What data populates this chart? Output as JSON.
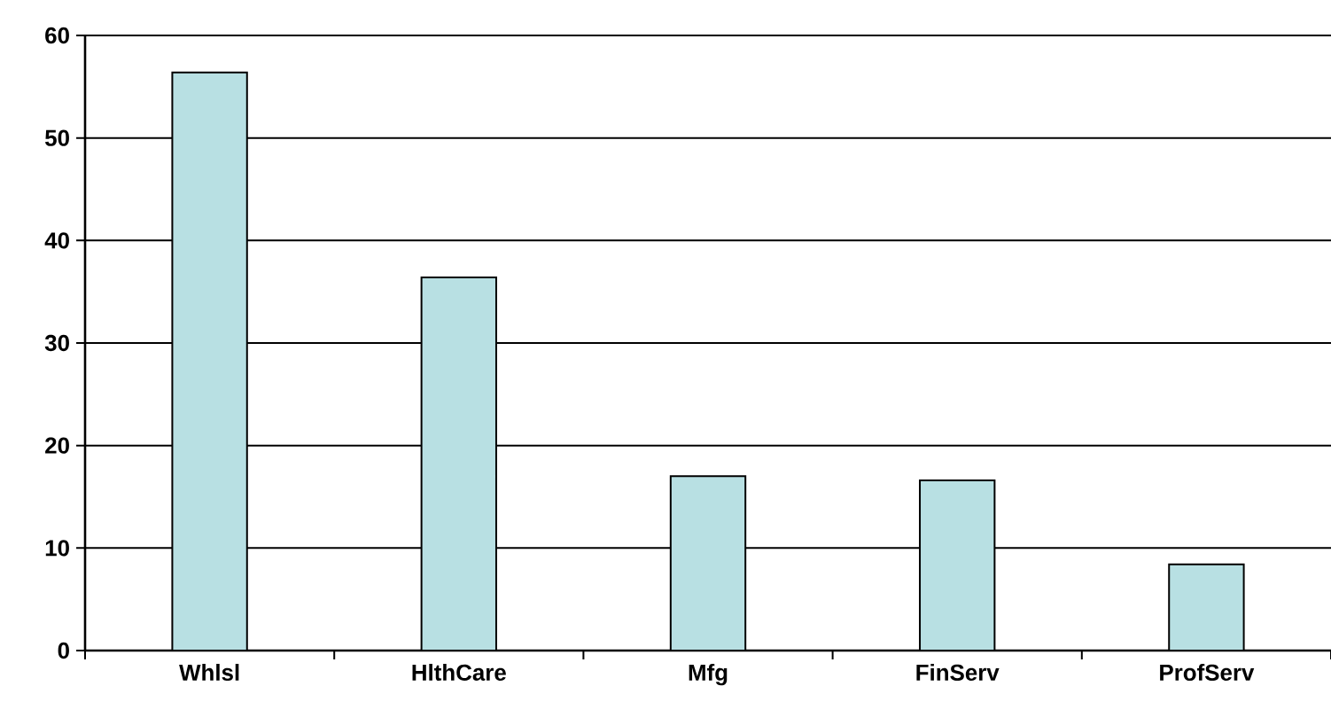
{
  "chart_data": {
    "type": "bar",
    "categories": [
      "Whlsl",
      "HlthCare",
      "Mfg",
      "FinServ",
      "ProfServ"
    ],
    "values": [
      56.4,
      36.4,
      17.0,
      16.6,
      8.4
    ],
    "color": "#b8e0e3",
    "ylim": [
      0,
      60
    ],
    "yticks": [
      0,
      10,
      20,
      30,
      40,
      50,
      60
    ],
    "grid": "y"
  }
}
